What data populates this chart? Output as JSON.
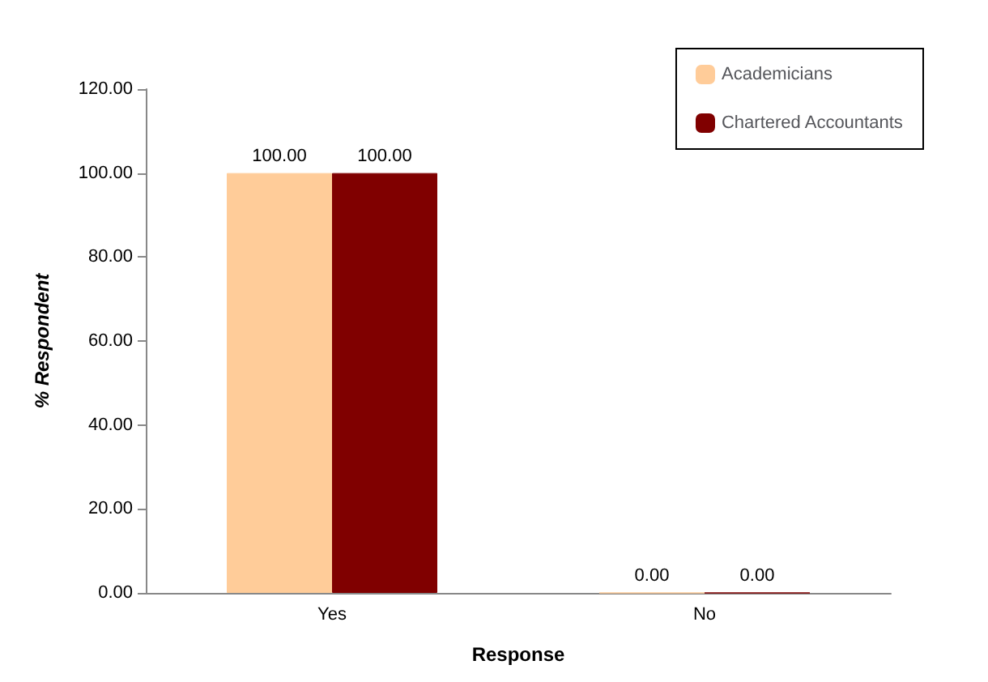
{
  "chart_data": {
    "type": "bar",
    "xlabel": "Response",
    "ylabel": "% Respondent",
    "categories": [
      "Yes",
      "No"
    ],
    "series": [
      {
        "name": "Academicians",
        "color": "#ffcc99",
        "values": [
          100,
          0
        ],
        "value_labels": [
          "100.00",
          "0.00"
        ]
      },
      {
        "name": "Chartered Accountants",
        "color": "#800000",
        "values": [
          100,
          0
        ],
        "value_labels": [
          "100.00",
          "0.00"
        ]
      }
    ],
    "ylim": [
      0,
      120
    ],
    "yticks": [
      {
        "value": 0,
        "label": "0.00"
      },
      {
        "value": 20,
        "label": "20.00"
      },
      {
        "value": 40,
        "label": "40.00"
      },
      {
        "value": 60,
        "label": "60.00"
      },
      {
        "value": 80,
        "label": "80.00"
      },
      {
        "value": 100,
        "label": "100.00"
      },
      {
        "value": 120,
        "label": "120.00"
      }
    ],
    "grid": false,
    "legend": "top right"
  }
}
